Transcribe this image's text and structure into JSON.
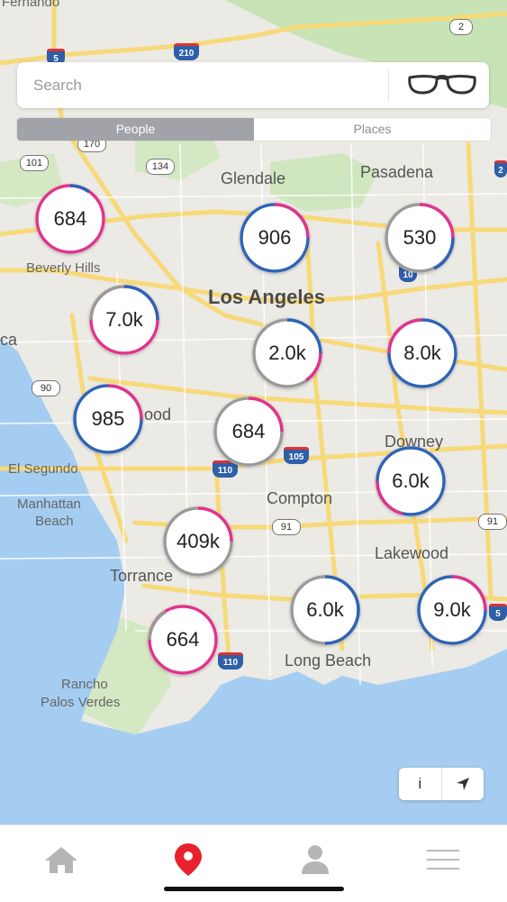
{
  "search": {
    "placeholder": "Search",
    "icon": "glasses-icon"
  },
  "segment": {
    "options": [
      "People",
      "Places"
    ],
    "selected": "People"
  },
  "map": {
    "places": [
      "Glendale",
      "Pasadena",
      "Beverly Hills",
      "Los Angeles",
      "ood",
      "El Segundo",
      "Manhattan",
      "Beach",
      "Downey",
      "Compton",
      "Lakewood",
      "Torrance",
      "Long Beach",
      "Rancho",
      "Palos Verdes",
      "Fernando",
      "ca"
    ],
    "road_shields": [
      "5",
      "210",
      "2",
      "170",
      "101",
      "134",
      "10",
      "90",
      "110",
      "105",
      "91",
      "91",
      "110",
      "5",
      "2"
    ],
    "clusters": [
      "684",
      "906",
      "530",
      "7.0k",
      "2.0k",
      "8.0k",
      "985",
      "684",
      "6.0k",
      "409k",
      "6.0k",
      "9.0k",
      "664"
    ]
  },
  "map_controls": {
    "info_label": "i",
    "locate_icon": "location-arrow-icon"
  },
  "tabbar": {
    "items": [
      "home-icon",
      "map-pin-icon",
      "person-icon",
      "menu-icon"
    ],
    "active": "map-pin-icon"
  },
  "colors": {
    "accent": "#e8212c",
    "ring_pink": "#e0348c",
    "ring_blue": "#2f63b5",
    "ring_gray": "#9a9a9a",
    "segment_active": "#a1a3a9",
    "water": "#a5cdf2",
    "land": "#eceae4",
    "park": "#c8e4b6",
    "road": "#f7d979"
  }
}
